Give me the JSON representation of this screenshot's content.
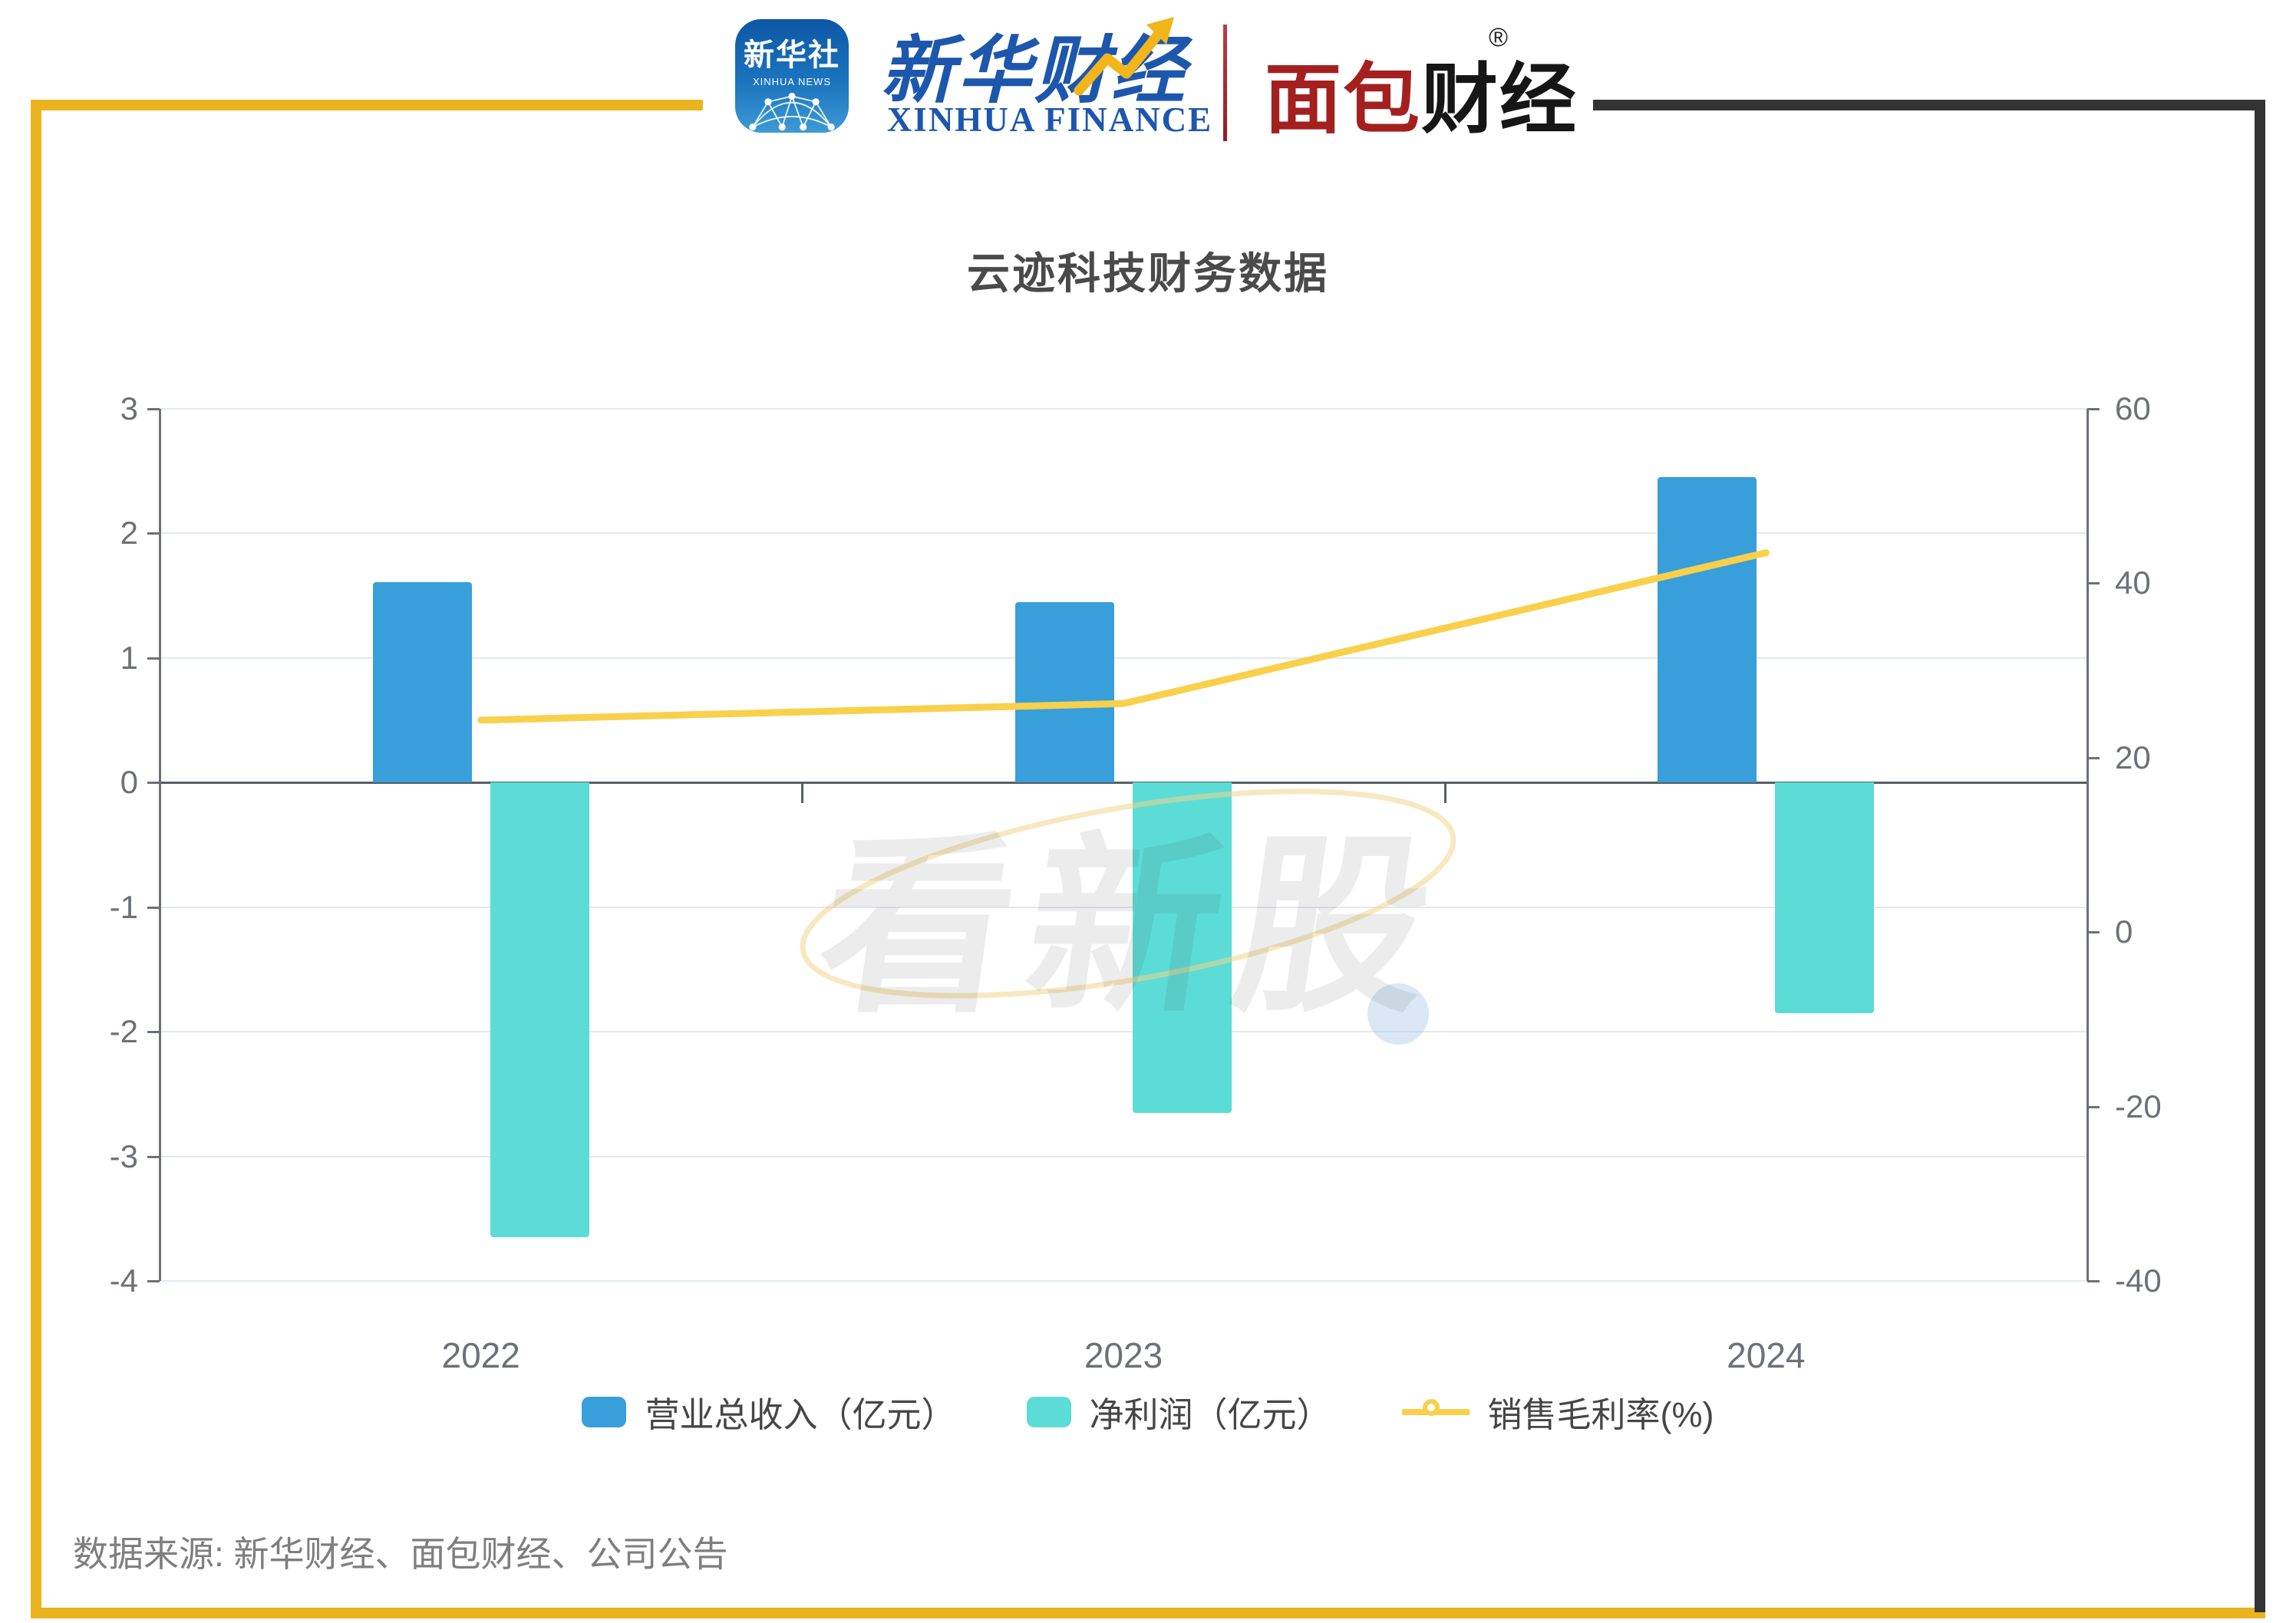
{
  "header": {
    "xinhua_news": {
      "line1": "新华社",
      "line2": "XINHUA NEWS"
    },
    "xinhua_finance": {
      "cn": "新华财经",
      "en": "XINHUA FINANCE"
    },
    "mianbao_finance": {
      "part1": "面包",
      "part2": "财经",
      "reg": "®"
    }
  },
  "title": "云迹科技财务数据",
  "watermark": "看新股",
  "source_note": "数据来源: 新华财经、面包财经、公司公告",
  "colors": {
    "frame_yellow": "#E9B41F",
    "frame_dark": "#333333",
    "revenue_blue": "#389FDA",
    "net_profit_cyan": "#5CDCD6",
    "margin_yellow": "#F9D04B",
    "grid": "#E3E8F2",
    "axis": "#6E7079",
    "zero_line": "#5A5E66",
    "title_gray": "#4A4A4A",
    "source_gray": "#7E7E7E"
  },
  "chart_data": {
    "type": "bar",
    "subtype": "bar+line combo, dual y-axis",
    "title": "云迹科技财务数据",
    "categories": [
      "2022",
      "2023",
      "2024"
    ],
    "series": [
      {
        "key": "revenue",
        "name": "营业总收入（亿元）",
        "type": "bar",
        "axis": "left",
        "color": "#389FDA",
        "values": [
          1.61,
          1.45,
          2.45
        ]
      },
      {
        "key": "net-profit",
        "name": "净利润（亿元）",
        "type": "bar",
        "axis": "left",
        "color": "#5CDCD6",
        "values": [
          -3.65,
          -2.65,
          -1.85
        ]
      },
      {
        "key": "gross-margin",
        "name": "销售毛利率(%)",
        "type": "line",
        "axis": "right",
        "color": "#F9D04B",
        "values": [
          24.3,
          26.2,
          43.5
        ]
      }
    ],
    "left_axis": {
      "min": -4,
      "max": 3,
      "ticks": [
        3,
        2,
        1,
        0,
        -1,
        -2,
        -3,
        -4
      ]
    },
    "right_axis": {
      "min": -40,
      "max": 60,
      "ticks": [
        60,
        40,
        20,
        0,
        -20,
        -40
      ]
    },
    "grid": true,
    "legend_position": "bottom"
  }
}
